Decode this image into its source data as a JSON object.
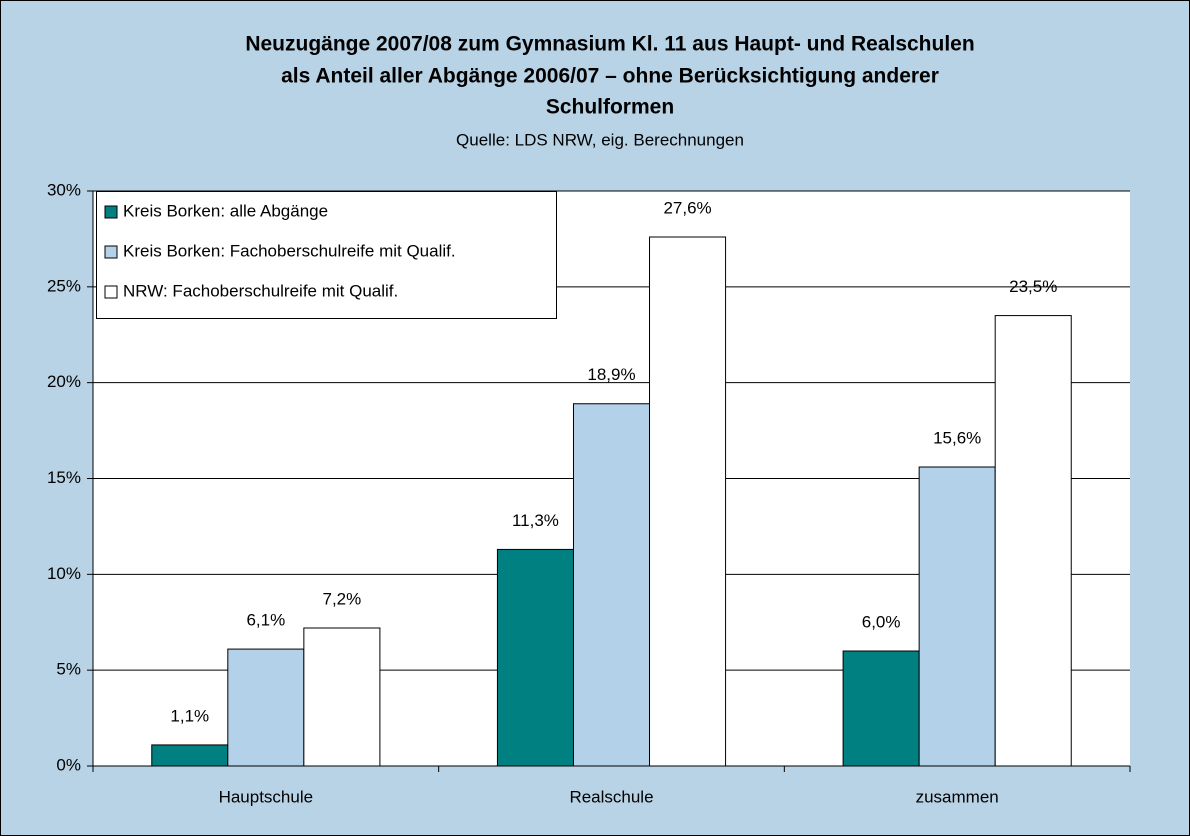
{
  "chart_data": {
    "type": "bar",
    "title": [
      "Neuzugänge 2007/08 zum Gymnasium Kl. 11 aus  Haupt- und Realschulen",
      "als Anteil aller Abgänge 2006/07 – ohne Berücksichtigung anderer",
      "Schulformen"
    ],
    "subtitle": "Quelle: LDS NRW, eig. Berechnungen",
    "categories": [
      "Hauptschule",
      "Realschule",
      "zusammen"
    ],
    "series": [
      {
        "name": "Kreis Borken: alle Abgänge",
        "color": "#008080",
        "values": [
          1.1,
          11.3,
          6.0
        ],
        "value_labels": [
          "1,1%",
          "11,3%",
          "6,0%"
        ]
      },
      {
        "name": "Kreis Borken: Fachoberschulreife mit Qualif.",
        "color": "#b3d1e8",
        "values": [
          6.1,
          18.9,
          15.6
        ],
        "value_labels": [
          "6,1%",
          "18,9%",
          "15,6%"
        ]
      },
      {
        "name": "NRW: Fachoberschulreife mit Qualif.",
        "color": "#ffffff",
        "values": [
          7.2,
          27.6,
          23.5
        ],
        "value_labels": [
          "7,2%",
          "27,6%",
          "23,5%"
        ]
      }
    ],
    "ylim": [
      0,
      30
    ],
    "yticks": [
      {
        "value": 0,
        "label": "0%"
      },
      {
        "value": 5,
        "label": "5%"
      },
      {
        "value": 10,
        "label": "10%"
      },
      {
        "value": 15,
        "label": "15%"
      },
      {
        "value": 20,
        "label": "20%"
      },
      {
        "value": 25,
        "label": "25%"
      },
      {
        "value": 30,
        "label": "30%"
      }
    ],
    "grid": true,
    "legend": "top-left"
  }
}
